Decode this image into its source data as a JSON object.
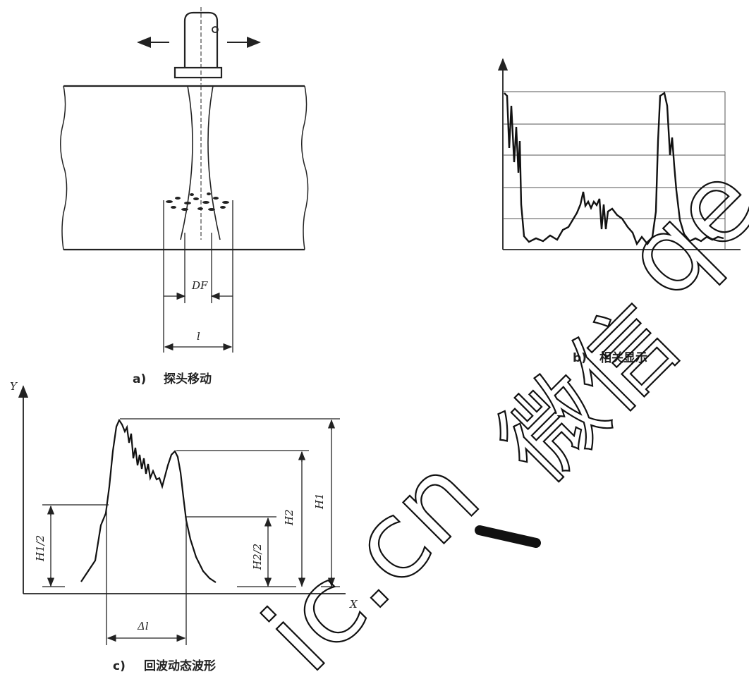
{
  "panel_a": {
    "caption_letter": "a)",
    "caption_text": "探头移动",
    "label_df": "DF",
    "label_l": "l"
  },
  "panel_b": {
    "caption_letter": "b)",
    "caption_text": "相关显示"
  },
  "panel_c": {
    "caption_letter": "c)",
    "caption_text": "回波动态波形",
    "axis_y": "Y",
    "axis_x": "X",
    "label_h1": "H1",
    "label_h2": "H2",
    "label_h1_half": "H1/2",
    "label_h2_half": "H2/2",
    "label_delta_l": "Δl"
  },
  "watermark": {
    "text_cn": "微信",
    "text_latin": "qe",
    "text_domain": "ic.cn"
  }
}
